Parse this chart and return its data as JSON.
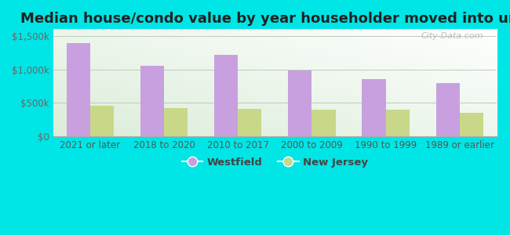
{
  "title": "Median house/condo value by year householder moved into unit",
  "categories": [
    "2021 or later",
    "2018 to 2020",
    "2010 to 2017",
    "2000 to 2009",
    "1990 to 1999",
    "1989 or earlier"
  ],
  "westfield_values": [
    1390000,
    1050000,
    1220000,
    980000,
    855000,
    800000
  ],
  "nj_values": [
    450000,
    415000,
    405000,
    395000,
    395000,
    355000
  ],
  "westfield_color": "#c8a0e0",
  "nj_color": "#c8d888",
  "background_color": "#00e5e5",
  "plot_bg_top": "#f0fff0",
  "plot_bg_bottom": "#e0eedc",
  "ylim": [
    0,
    1600000
  ],
  "yticks": [
    0,
    500000,
    1000000,
    1500000
  ],
  "ytick_labels": [
    "$0",
    "$500k",
    "$1,000k",
    "$1,500k"
  ],
  "watermark": "City-Data.com",
  "legend_westfield": "Westfield",
  "legend_nj": "New Jersey",
  "title_fontsize": 13,
  "tick_fontsize": 8.5,
  "legend_fontsize": 9.5
}
